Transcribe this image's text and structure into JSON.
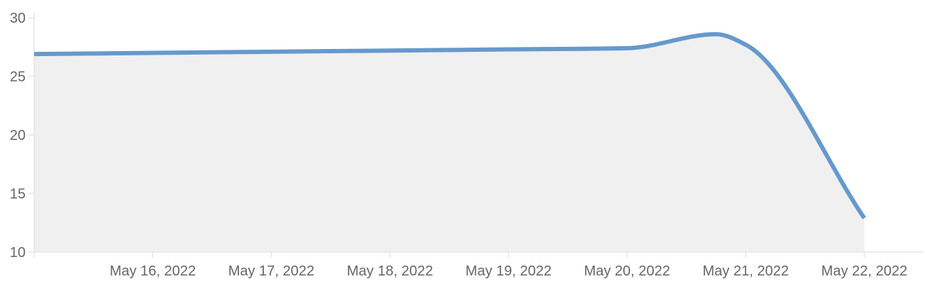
{
  "chart_data": {
    "type": "area",
    "title": "",
    "xlabel": "",
    "ylabel": "",
    "x_tick_labels": [
      "May 16, 2022",
      "May 17, 2022",
      "May 18, 2022",
      "May 19, 2022",
      "May 20, 2022",
      "May 21, 2022",
      "May 22, 2022"
    ],
    "y_ticks": [
      10,
      15,
      20,
      25,
      30
    ],
    "ylim": [
      10,
      30
    ],
    "xlim": [
      "2022-05-15",
      "2022-05-22T12:00"
    ],
    "series": [
      {
        "x": [
          "2022-05-15",
          "2022-05-16",
          "2022-05-17",
          "2022-05-18",
          "2022-05-19",
          "2022-05-20",
          "2022-05-20T18:00",
          "2022-05-21",
          "2022-05-22"
        ],
        "values": [
          26.9,
          27.0,
          27.1,
          27.2,
          27.3,
          27.4,
          28.6,
          27.7,
          12.9
        ]
      }
    ],
    "line_color": "#6699cc",
    "fill_color": "#f0f0f0",
    "grid": false,
    "legend": "none"
  }
}
